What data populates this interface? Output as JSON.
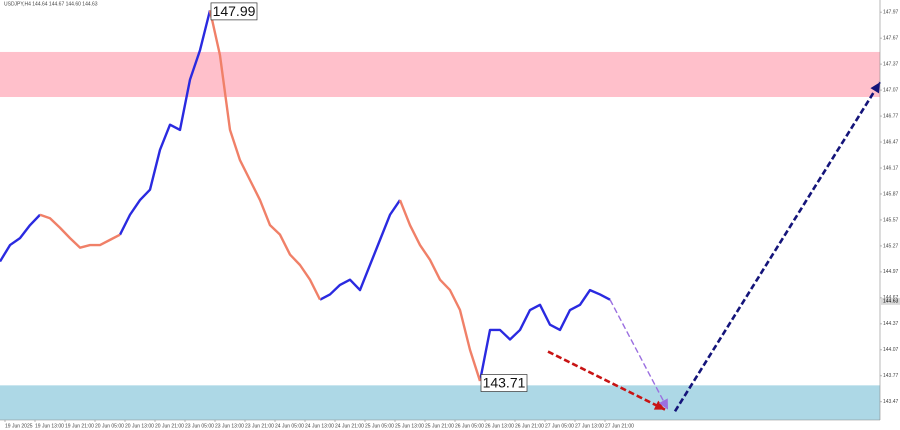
{
  "chart_data": {
    "type": "line",
    "header": "USDJPY,H4 144.64 144.67 144.60 144.63",
    "x": [
      0,
      1,
      2,
      3,
      4,
      5,
      6,
      7,
      8,
      9,
      10,
      11,
      12,
      13,
      14,
      15,
      16,
      17,
      18,
      19,
      20,
      21,
      22,
      23,
      24,
      25,
      26,
      27,
      28,
      29,
      30,
      31,
      32,
      33,
      34,
      35,
      36,
      37,
      38,
      39,
      40,
      41,
      42,
      43,
      44,
      45,
      46,
      47,
      48,
      49,
      50,
      51,
      52,
      53,
      54,
      55,
      56,
      57,
      58,
      59,
      60,
      61
    ],
    "series": [
      {
        "color": "#2a2ae0",
        "values": [
          145.09,
          145.28,
          145.36,
          145.51,
          145.63,
          null,
          null,
          null,
          null,
          null,
          null,
          null,
          145.4,
          145.63,
          145.8,
          145.92,
          146.38,
          146.67,
          146.61,
          147.19,
          147.53,
          147.99,
          null,
          null,
          null,
          null,
          null,
          null,
          null,
          null,
          null,
          null,
          144.65,
          144.71,
          144.82,
          144.88,
          144.76,
          145.05,
          145.34,
          145.63,
          145.8,
          null,
          null,
          null,
          null,
          null,
          null,
          null,
          143.71,
          144.3,
          144.3,
          144.19,
          144.3,
          144.53,
          144.59,
          144.36,
          144.3,
          144.53,
          144.59,
          144.76,
          144.71,
          144.65
        ]
      },
      {
        "color": "#f08068",
        "values": [
          null,
          null,
          null,
          null,
          145.63,
          145.59,
          145.48,
          145.36,
          145.25,
          145.28,
          145.28,
          145.34,
          145.4,
          null,
          null,
          null,
          null,
          null,
          null,
          null,
          null,
          147.99,
          147.47,
          146.61,
          146.26,
          146.03,
          145.8,
          145.51,
          145.4,
          145.17,
          145.05,
          144.88,
          144.65,
          null,
          null,
          null,
          null,
          null,
          null,
          null,
          145.8,
          145.51,
          145.28,
          145.11,
          144.88,
          144.76,
          144.53,
          144.07,
          143.71,
          null,
          null,
          null,
          null,
          null,
          null,
          null,
          null,
          null,
          null,
          null,
          null,
          null
        ]
      }
    ],
    "zones": [
      {
        "color": "#ffc0cb",
        "range": [
          146.99,
          147.51
        ]
      },
      {
        "color": "#add8e6",
        "range": [
          143.26,
          143.66
        ]
      }
    ],
    "arrows": [
      {
        "color": "#c81414",
        "x": [
          54.8,
          66.5
        ],
        "y": [
          144.05,
          143.38
        ]
      },
      {
        "color": "#9b6fe0",
        "x": [
          61,
          66.8
        ],
        "y": [
          144.65,
          143.38
        ]
      },
      {
        "color": "#14147a",
        "x": [
          67.5,
          88
        ],
        "y": [
          143.36,
          147.16
        ]
      }
    ],
    "annotations": [
      {
        "text": "147.99",
        "x": 21,
        "y": 147.99
      },
      {
        "text": "143.71",
        "x": 48,
        "y": 143.71
      }
    ],
    "last_price": 144.63,
    "xlim": [
      0,
      88
    ],
    "ylim": [
      143.26,
      148.11
    ],
    "yticks": [
      147.97,
      147.67,
      147.37,
      147.07,
      146.77,
      146.47,
      146.17,
      145.87,
      145.57,
      145.27,
      144.97,
      144.67,
      144.37,
      144.07,
      143.77,
      143.47
    ],
    "xticks": [
      {
        "value": 0.5,
        "label": "19 Jun 2025"
      },
      {
        "value": 3.5,
        "label": "19 Jun 13:00"
      },
      {
        "value": 6.5,
        "label": "19 Jun 21:00"
      },
      {
        "value": 9.5,
        "label": "20 Jun 05:00"
      },
      {
        "value": 12.5,
        "label": "20 Jun 13:00"
      },
      {
        "value": 15.5,
        "label": "20 Jun 21:00"
      },
      {
        "value": 18.5,
        "label": "23 Jun 05:00"
      },
      {
        "value": 21.5,
        "label": "23 Jun 13:00"
      },
      {
        "value": 24.5,
        "label": "23 Jun 21:00"
      },
      {
        "value": 27.5,
        "label": "24 Jun 05:00"
      },
      {
        "value": 30.5,
        "label": "24 Jun 13:00"
      },
      {
        "value": 33.5,
        "label": "24 Jun 21:00"
      },
      {
        "value": 36.5,
        "label": "25 Jun 05:00"
      },
      {
        "value": 39.5,
        "label": "25 Jun 13:00"
      },
      {
        "value": 42.5,
        "label": "25 Jun 21:00"
      },
      {
        "value": 45.5,
        "label": "26 Jun 05:00"
      },
      {
        "value": 48.5,
        "label": "26 Jun 13:00"
      },
      {
        "value": 51.5,
        "label": "26 Jun 21:00"
      },
      {
        "value": 54.5,
        "label": "27 Jun 05:00"
      },
      {
        "value": 57.5,
        "label": "27 Jun 13:00"
      },
      {
        "value": 60.5,
        "label": "27 Jun 21:00"
      }
    ]
  }
}
